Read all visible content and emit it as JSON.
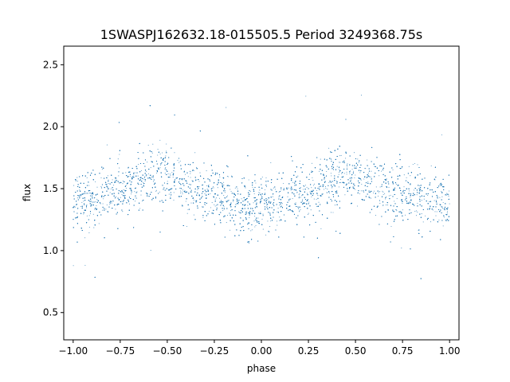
{
  "chart_data": {
    "type": "scatter",
    "title": "1SWASPJ162632.18-015505.5 Period 3249368.75s",
    "xlabel": "phase",
    "ylabel": "flux",
    "xlim": [
      -1.05,
      1.05
    ],
    "ylim": [
      0.28,
      2.65
    ],
    "xticks": [
      -1.0,
      -0.75,
      -0.5,
      -0.25,
      0.0,
      0.25,
      0.5,
      0.75,
      1.0
    ],
    "xtick_labels": [
      "−1.00",
      "−0.75",
      "−0.50",
      "−0.25",
      "0.00",
      "0.25",
      "0.50",
      "0.75",
      "1.00"
    ],
    "yticks": [
      0.5,
      1.0,
      1.5,
      2.0,
      2.5
    ],
    "ytick_labels": [
      "0.5",
      "1.0",
      "1.5",
      "2.0",
      "2.5"
    ],
    "grid": false,
    "legend": "none",
    "marker_color": "#1f77b4",
    "series": [
      {
        "x": [
          -1.0,
          -0.95,
          -0.9,
          -0.85,
          -0.8,
          -0.75,
          -0.7,
          -0.65,
          -0.6,
          -0.55,
          -0.5,
          -0.45,
          -0.4,
          -0.35,
          -0.3,
          -0.25,
          -0.2,
          -0.15,
          -0.1,
          -0.05,
          0.0,
          0.05,
          0.1,
          0.15,
          0.2,
          0.25,
          0.3,
          0.35,
          0.4,
          0.45,
          0.5,
          0.55,
          0.6,
          0.65,
          0.7,
          0.75,
          0.8,
          0.85,
          0.9,
          0.95,
          1.0
        ],
        "y": [
          1.38,
          1.42,
          1.44,
          1.46,
          1.47,
          1.49,
          1.52,
          1.56,
          1.6,
          1.63,
          1.61,
          1.57,
          1.53,
          1.5,
          1.48,
          1.46,
          1.44,
          1.4,
          1.37,
          1.35,
          1.34,
          1.36,
          1.4,
          1.44,
          1.46,
          1.48,
          1.51,
          1.55,
          1.59,
          1.63,
          1.61,
          1.57,
          1.53,
          1.5,
          1.48,
          1.46,
          1.45,
          1.43,
          1.41,
          1.39,
          1.38
        ]
      }
    ]
  }
}
